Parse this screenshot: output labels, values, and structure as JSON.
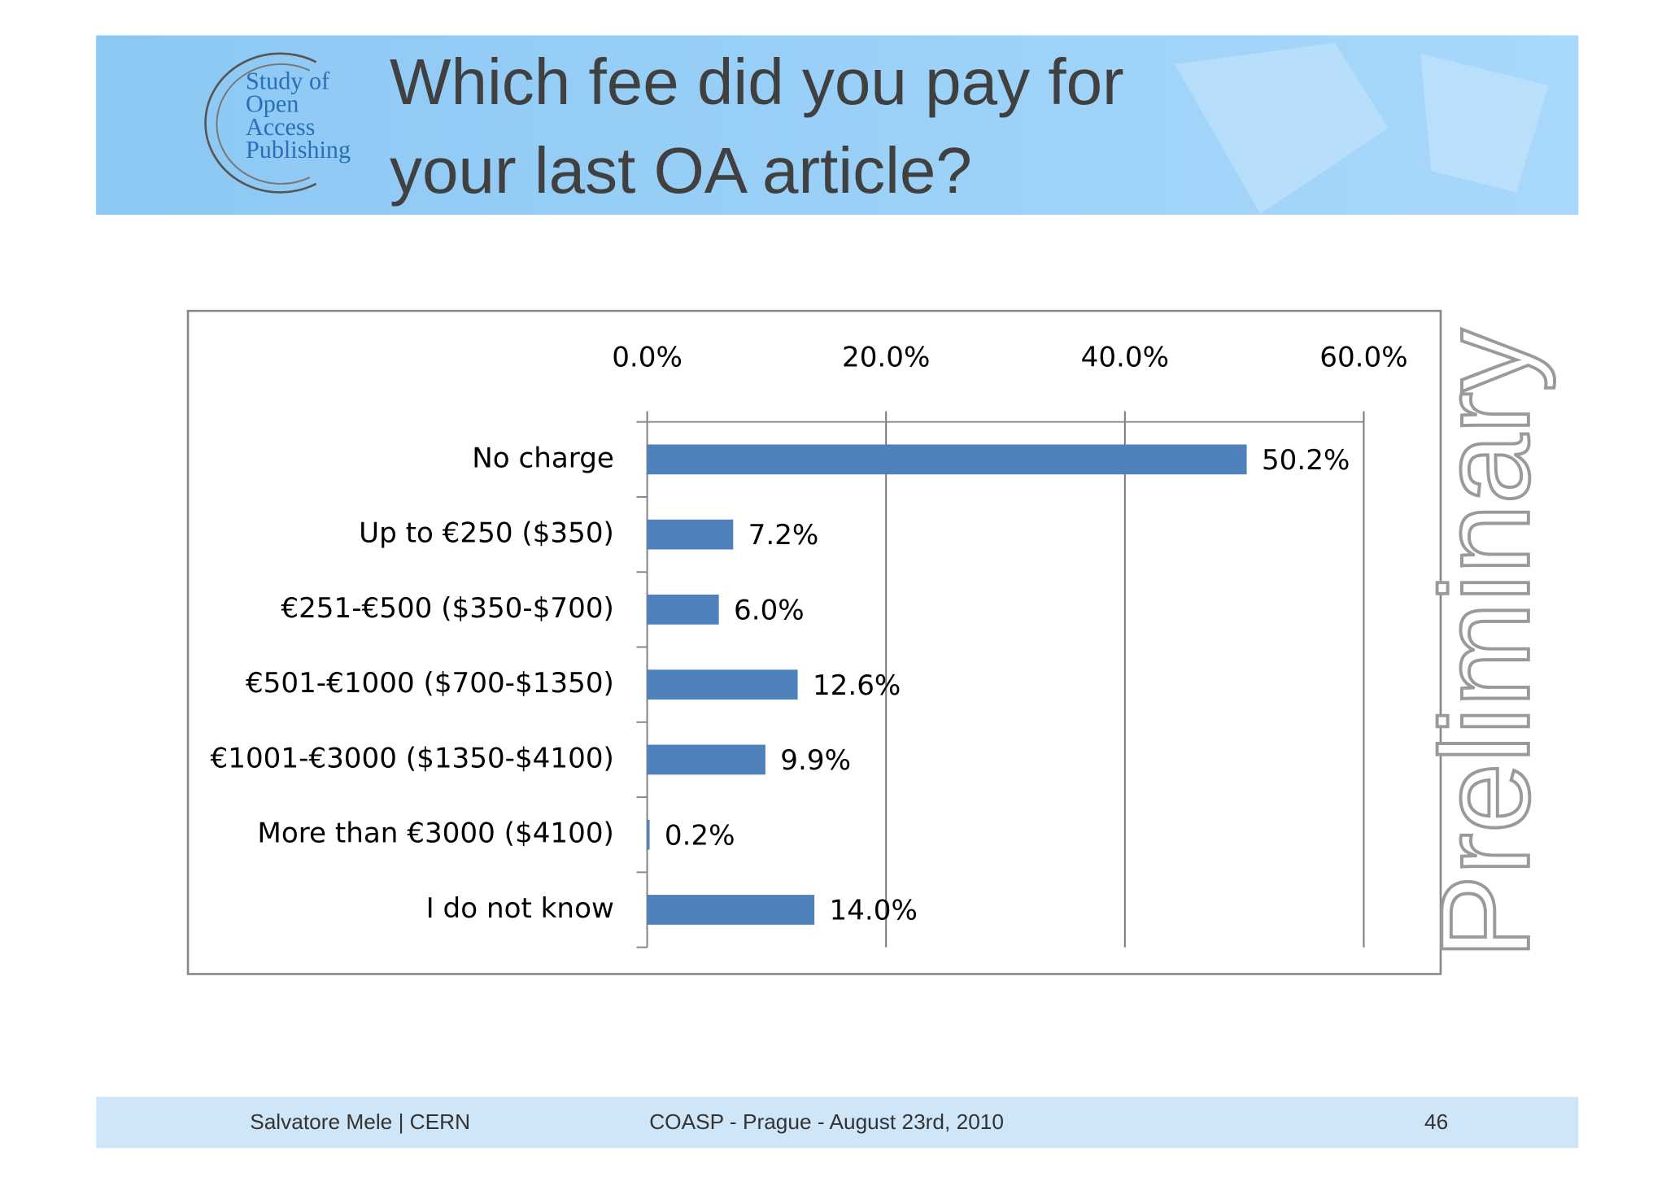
{
  "slide": {
    "logo": [
      "Study of",
      "Open",
      "Access",
      "Publishing"
    ],
    "footer": {
      "author": "Salvatore Mele | CERN",
      "event": "COASP - Prague - August 23rd, 2010",
      "page": "46"
    },
    "watermark": "Preliminary"
  },
  "chart_data": {
    "type": "hbar",
    "title": "Which fee did you pay for your last OA article?",
    "categories": [
      "No charge",
      "Up to €250 ($350)",
      "€251-€500 ($350-$700)",
      "€501-€1000 ($700-$1350)",
      "€1001-€3000 ($1350-$4100)",
      "More than €3000 ($4100)",
      "I do not know"
    ],
    "values": [
      50.2,
      7.2,
      6.0,
      12.6,
      9.9,
      0.2,
      14.0
    ],
    "value_labels": [
      "50.2%",
      "7.2%",
      "6.0%",
      "12.6%",
      "9.9%",
      "0.2%",
      "14.0%"
    ],
    "color": "#4f81bd",
    "xlim": [
      0,
      60
    ],
    "xticks": [
      {
        "value": 0,
        "label": "0.0%"
      },
      {
        "value": 20,
        "label": "20.0%"
      },
      {
        "value": 40,
        "label": "40.0%"
      },
      {
        "value": 60,
        "label": "60.0%"
      }
    ],
    "grid": true
  }
}
